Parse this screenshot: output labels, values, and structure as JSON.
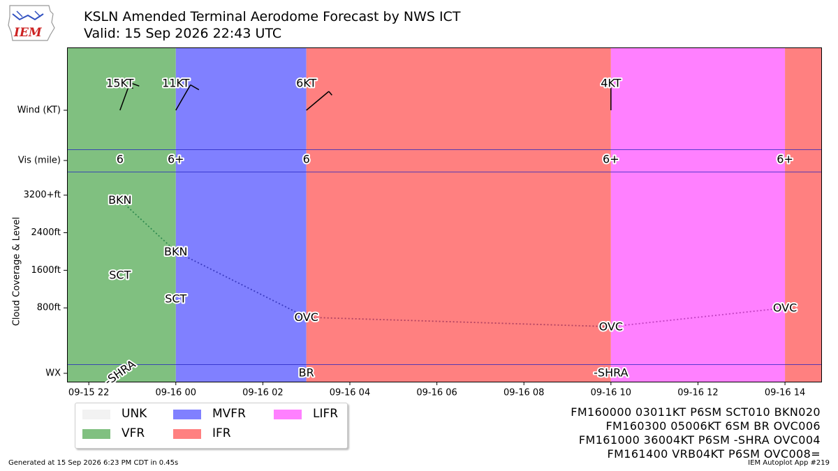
{
  "header": {
    "title_line1": "KSLN Amended Terminal Aerodome Forecast by NWS ICT",
    "title_line2": "Valid: 15 Sep 2026 22:43 UTC",
    "logo_text": "IEM"
  },
  "chart_data": {
    "type": "timeline",
    "x_start": "2026-09-15T21:30Z",
    "x_end": "2026-09-16T14:50Z",
    "x_ticks": [
      {
        "t": "2026-09-15T22:00Z",
        "label": "09-15 22"
      },
      {
        "t": "2026-09-16T00:00Z",
        "label": "09-16 00"
      },
      {
        "t": "2026-09-16T02:00Z",
        "label": "09-16 02"
      },
      {
        "t": "2026-09-16T04:00Z",
        "label": "09-16 04"
      },
      {
        "t": "2026-09-16T06:00Z",
        "label": "09-16 06"
      },
      {
        "t": "2026-09-16T08:00Z",
        "label": "09-16 08"
      },
      {
        "t": "2026-09-16T10:00Z",
        "label": "09-16 10"
      },
      {
        "t": "2026-09-16T12:00Z",
        "label": "09-16 12"
      },
      {
        "t": "2026-09-16T14:00Z",
        "label": "09-16 14"
      }
    ],
    "y_rows": {
      "wind": "Wind (KT)",
      "vis": "Vis (mile)",
      "wx": "WX"
    },
    "y_axis_label": "Cloud Coverage & Level",
    "y_ticks": [
      {
        "ft": 3200,
        "label": "3200+ft"
      },
      {
        "ft": 2400,
        "label": "2400ft"
      },
      {
        "ft": 1600,
        "label": "1600ft"
      },
      {
        "ft": 800,
        "label": "800ft"
      }
    ],
    "y_range_ft": [
      -400,
      3700
    ],
    "categories": [
      {
        "start": "2026-09-15T21:30Z",
        "end": "2026-09-16T00:00Z",
        "cat": "VFR",
        "color": "#80c080"
      },
      {
        "start": "2026-09-16T00:00Z",
        "end": "2026-09-16T03:00Z",
        "cat": "MVFR",
        "color": "#8080ff"
      },
      {
        "start": "2026-09-16T03:00Z",
        "end": "2026-09-16T10:00Z",
        "cat": "IFR",
        "color": "#ff8080"
      },
      {
        "start": "2026-09-16T10:00Z",
        "end": "2026-09-16T14:00Z",
        "cat": "LIFR",
        "color": "#ff80ff"
      },
      {
        "start": "2026-09-16T14:00Z",
        "end": "2026-09-16T14:50Z",
        "cat": "IFR",
        "color": "#ff8080"
      }
    ],
    "wind": [
      {
        "t": "2026-09-15T22:43Z",
        "label": "15KT",
        "dir": 20,
        "speed": 15
      },
      {
        "t": "2026-09-16T00:00Z",
        "label": "11KT",
        "dir": 30,
        "speed": 11
      },
      {
        "t": "2026-09-16T03:00Z",
        "label": "6KT",
        "dir": 50,
        "speed": 6
      },
      {
        "t": "2026-09-16T10:00Z",
        "label": "4KT",
        "dir": 360,
        "speed": 4
      }
    ],
    "visibility": [
      {
        "t": "2026-09-15T22:43Z",
        "label": "6"
      },
      {
        "t": "2026-09-16T00:00Z",
        "label": "6+"
      },
      {
        "t": "2026-09-16T03:00Z",
        "label": "6"
      },
      {
        "t": "2026-09-16T10:00Z",
        "label": "6+"
      },
      {
        "t": "2026-09-16T14:00Z",
        "label": "6+"
      }
    ],
    "clouds": [
      {
        "t": "2026-09-15T22:43Z",
        "ft": 1500,
        "label": "SCT"
      },
      {
        "t": "2026-09-15T22:43Z",
        "ft": 3100,
        "label": "BKN"
      },
      {
        "t": "2026-09-16T00:00Z",
        "ft": 1000,
        "label": "SCT"
      },
      {
        "t": "2026-09-16T00:00Z",
        "ft": 2000,
        "label": "BKN"
      },
      {
        "t": "2026-09-16T03:00Z",
        "ft": 600,
        "label": "OVC"
      },
      {
        "t": "2026-09-16T10:00Z",
        "ft": 400,
        "label": "OVC"
      },
      {
        "t": "2026-09-16T14:00Z",
        "ft": 800,
        "label": "OVC"
      }
    ],
    "weather": [
      {
        "t": "2026-09-15T22:43Z",
        "label": "-SHRA",
        "rotated": true
      },
      {
        "t": "2026-09-16T03:00Z",
        "label": "BR",
        "rotated": false
      },
      {
        "t": "2026-09-16T10:00Z",
        "label": "-SHRA",
        "rotated": false
      }
    ]
  },
  "legend": [
    {
      "label": "UNK",
      "color": "#f2f2f2"
    },
    {
      "label": "VFR",
      "color": "#80c080"
    },
    {
      "label": "MVFR",
      "color": "#8080ff"
    },
    {
      "label": "IFR",
      "color": "#ff8080"
    },
    {
      "label": "LIFR",
      "color": "#ff80ff"
    }
  ],
  "taf_text": [
    "FM160000 03011KT P6SM SCT010 BKN020",
    "FM160300 05006KT 6SM BR OVC006",
    "FM161000 36004KT P6SM -SHRA OVC004",
    "FM161400 VRB04KT P6SM OVC008="
  ],
  "footer": {
    "generated": "Generated at 15 Sep 2026 6:23 PM CDT in 0.45s",
    "app": "IEM Autoplot App #219"
  }
}
